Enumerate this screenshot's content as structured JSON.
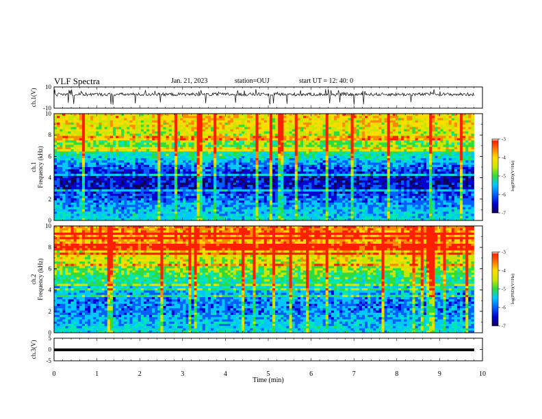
{
  "header": {
    "title": "VLF Spectra",
    "date": "Jan. 21, 2023",
    "station": "station=OUJ",
    "start": "start  UT =   12: 40: 0"
  },
  "colors": {
    "palette_low_to_high": [
      "#10005a",
      "#0000d0",
      "#0060ff",
      "#00c8ff",
      "#00e6b4",
      "#30dc3c",
      "#c8e600",
      "#ffdc00",
      "#ff8c00",
      "#ff2000"
    ]
  },
  "chart_data": [
    {
      "type": "line",
      "name": "ch1-waveform",
      "ylabel": "ch.1(V)",
      "yticks": [
        "10",
        "-10"
      ],
      "ylim": [
        -10,
        10
      ],
      "x_unit": "min",
      "xlim": [
        0,
        9.8
      ],
      "description_values": "noisy waveform oscillating about ~3 V with spikes to ±8 V"
    },
    {
      "type": "heatmap",
      "name": "ch1-spectrogram",
      "ylabel_lines": [
        "ch.1",
        "Frequency  (kHz)"
      ],
      "yticks": [
        "0",
        "2",
        "4",
        "6",
        "8",
        "10"
      ],
      "ylim": [
        0,
        10
      ],
      "xlim": [
        0,
        9.8
      ],
      "colorbar": {
        "label": "log(PSD)(V²/Hz)",
        "ticks": [
          "-3",
          "-4",
          "-5",
          "-6",
          "-7"
        ],
        "range": [
          -7,
          -3
        ]
      },
      "z_by_frequency_kHz": [
        [
          0,
          -5.4
        ],
        [
          1,
          -5.6
        ],
        [
          2,
          -6.0
        ],
        [
          3,
          -6.4
        ],
        [
          4,
          -6.5
        ],
        [
          5,
          -6.0
        ],
        [
          6,
          -5.3
        ],
        [
          7,
          -4.8
        ],
        [
          8,
          -4.4
        ],
        [
          9,
          -4.1
        ],
        [
          10,
          -4.0
        ]
      ]
    },
    {
      "type": "heatmap",
      "name": "ch2-spectrogram",
      "ylabel_lines": [
        "ch.2",
        "Frequency  (kHz)"
      ],
      "yticks": [
        "0",
        "2",
        "4",
        "6",
        "8",
        "10"
      ],
      "ylim": [
        0,
        10
      ],
      "xlim": [
        0,
        9.8
      ],
      "colorbar": {
        "label": "log(PSD)(V²/Hz)",
        "ticks": [
          "-3",
          "-4",
          "-5",
          "-6",
          "-7"
        ],
        "range": [
          -7,
          -3
        ]
      },
      "z_by_frequency_kHz": [
        [
          0,
          -5.4
        ],
        [
          1,
          -5.6
        ],
        [
          2,
          -5.9
        ],
        [
          3,
          -5.9
        ],
        [
          4,
          -5.6
        ],
        [
          5,
          -5.0
        ],
        [
          6,
          -4.6
        ],
        [
          7,
          -4.2
        ],
        [
          8,
          -3.9
        ],
        [
          9,
          -3.7
        ],
        [
          10,
          -3.6
        ]
      ]
    },
    {
      "type": "line",
      "name": "ch3-waveform",
      "ylabel": "ch.3(V)",
      "yticks": [
        "5",
        "0",
        "-5"
      ],
      "ylim": [
        -5,
        5
      ],
      "xlim": [
        0,
        9.8
      ],
      "values": [
        [
          0,
          -1
        ],
        [
          9.8,
          -1
        ]
      ]
    }
  ],
  "xaxis": {
    "label": "Time  (min)",
    "ticks": [
      "0",
      "1",
      "2",
      "3",
      "4",
      "5",
      "6",
      "7",
      "8",
      "9",
      "10"
    ],
    "range": [
      0,
      10
    ]
  }
}
